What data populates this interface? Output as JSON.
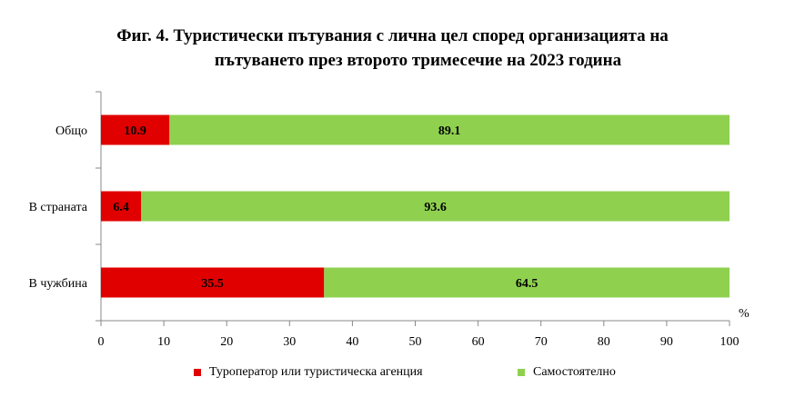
{
  "title": {
    "line1": "Фиг. 4. Туристически пътувания с лична цел според организацията на",
    "line2": "пътуването през второто тримесечие на 2023 година"
  },
  "chart_data": {
    "type": "bar",
    "orientation": "horizontal",
    "stacked": true,
    "categories": [
      "Общо",
      "В страната",
      "В чужбина"
    ],
    "series": [
      {
        "name": "Туроператор или туристическа агенция",
        "values": [
          10.9,
          6.4,
          35.5
        ],
        "color": "#e00000"
      },
      {
        "name": "Самостоятелно",
        "values": [
          89.1,
          93.6,
          64.5
        ],
        "color": "#8fd14f"
      }
    ],
    "xlim": [
      0,
      100
    ],
    "xticks": [
      0,
      10,
      20,
      30,
      40,
      50,
      60,
      70,
      80,
      90,
      100
    ],
    "xunit": "%",
    "grid": false,
    "legend_position": "bottom"
  }
}
